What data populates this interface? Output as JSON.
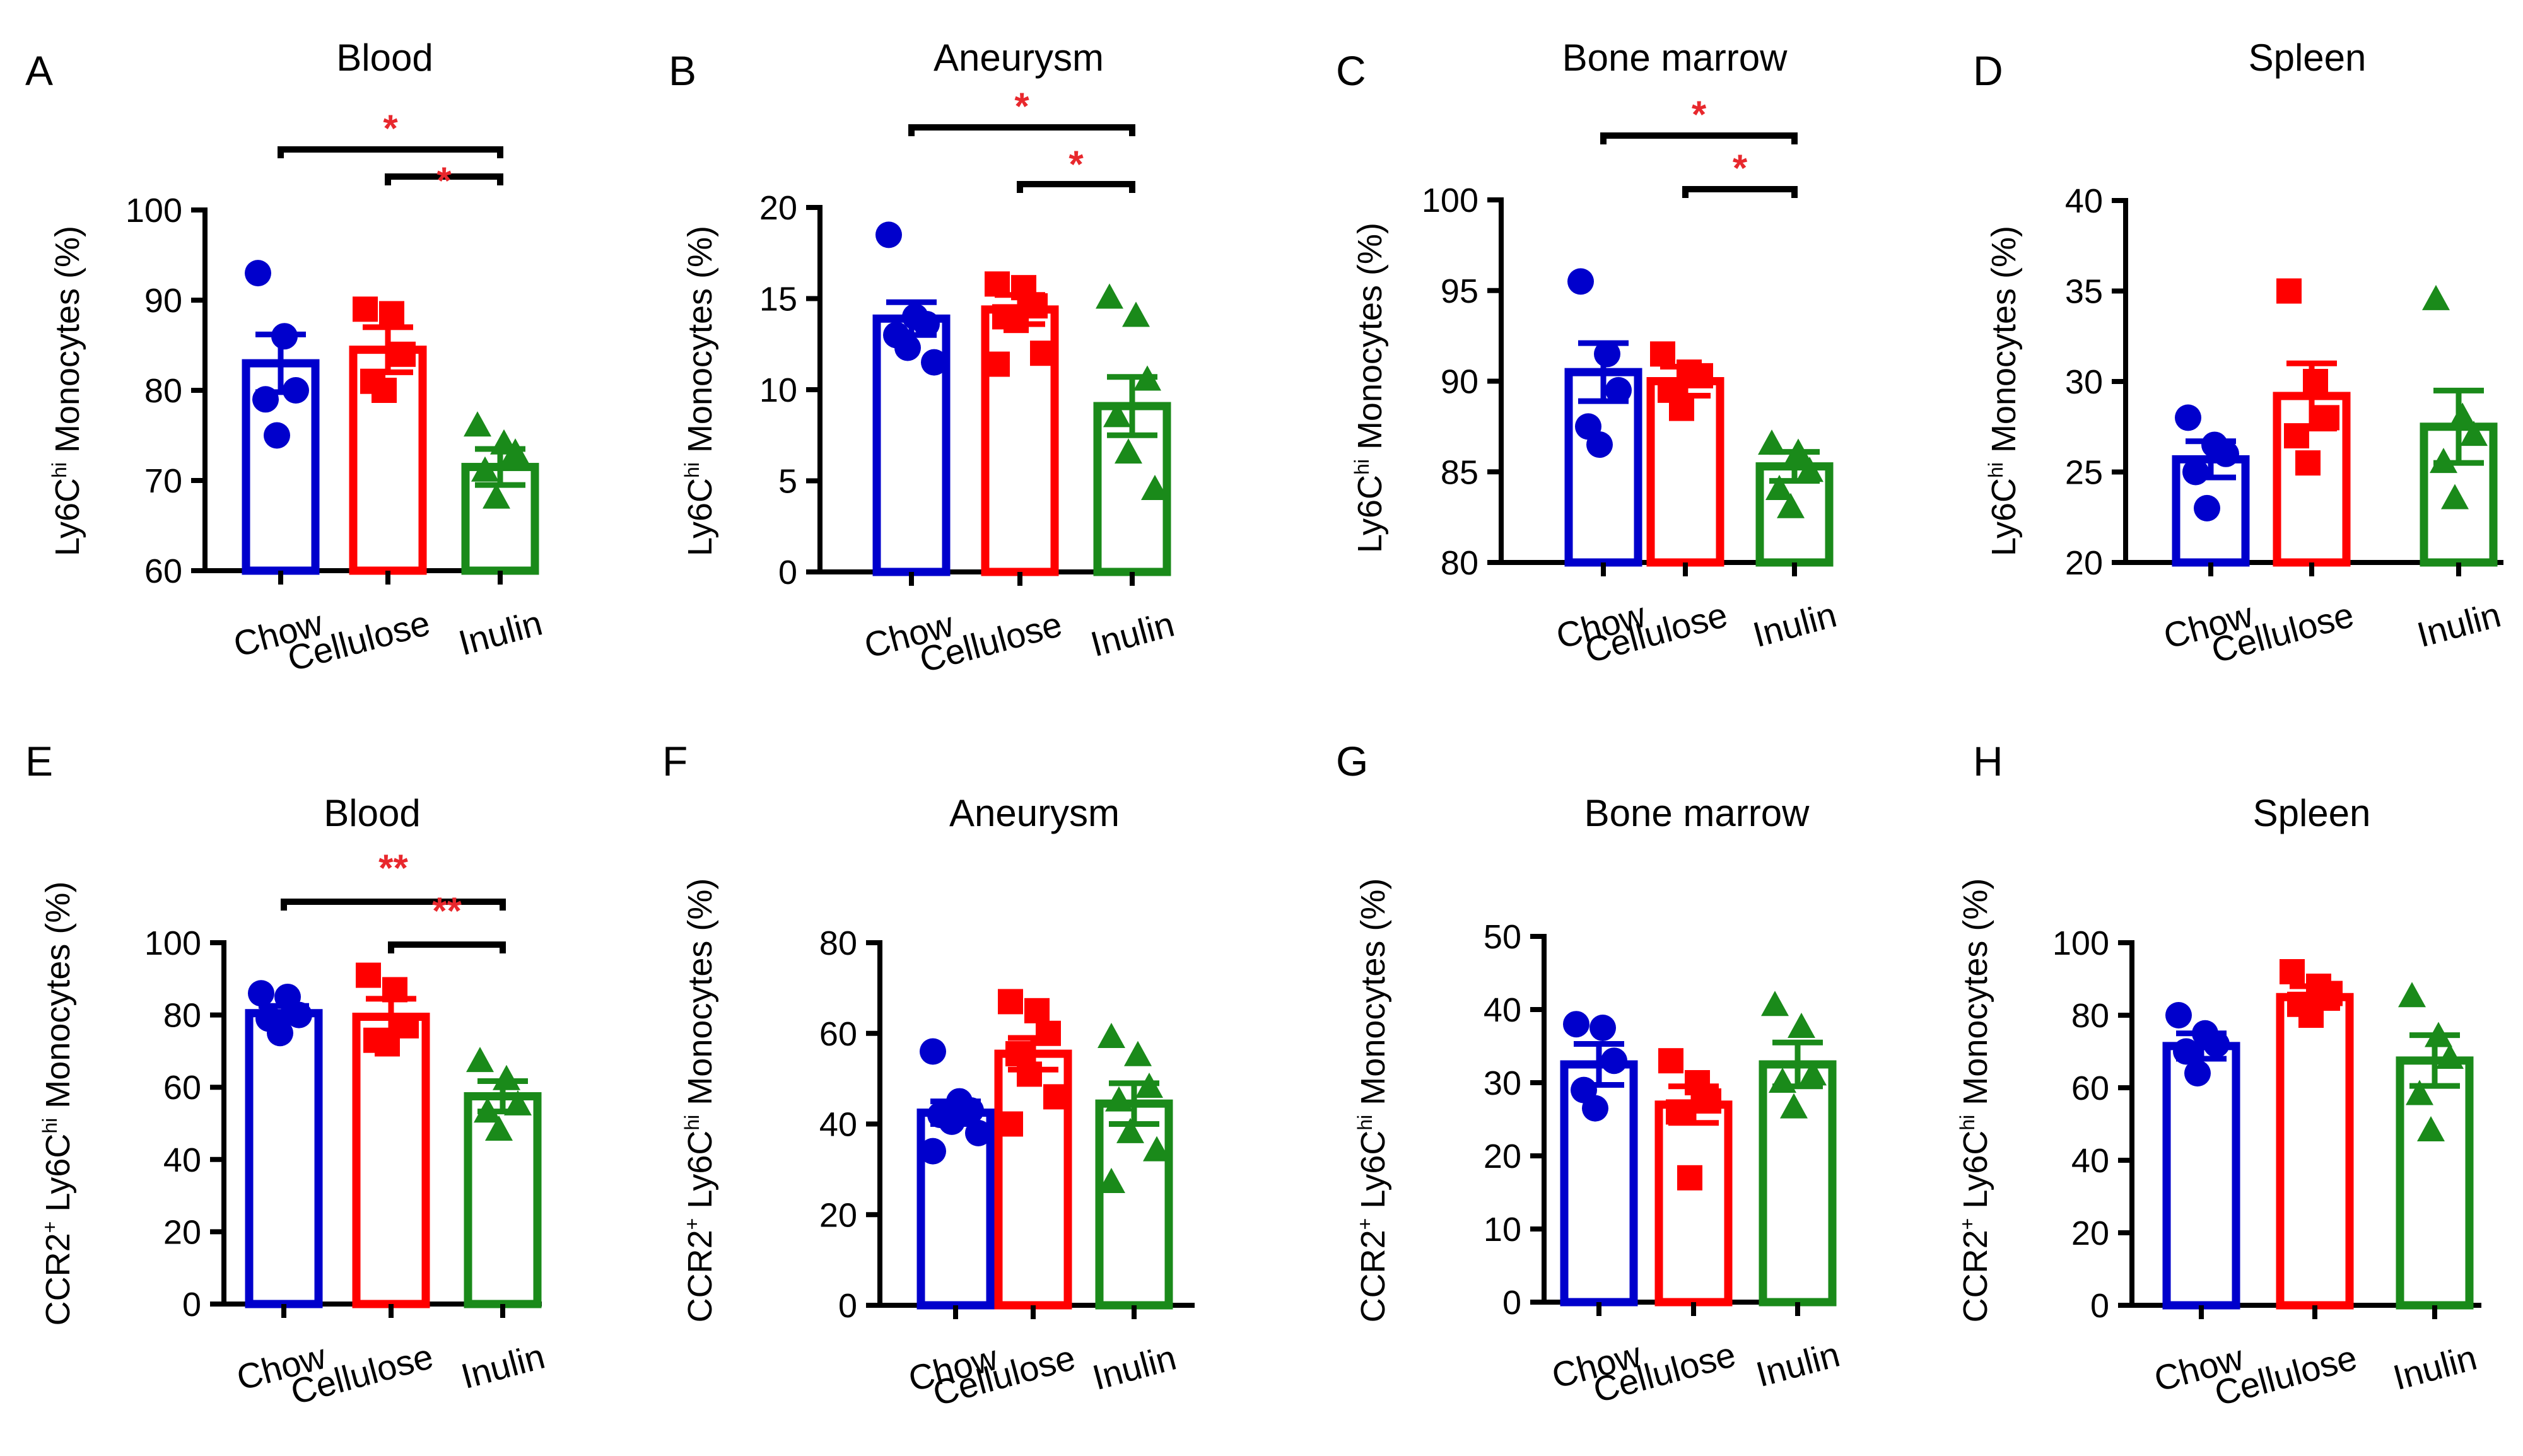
{
  "colors": {
    "Chow": "#0000cc",
    "Cellulose": "#ff0000",
    "Inulin": "#1a8a1a",
    "sig": "#e8282d"
  },
  "chart_data": [
    {
      "id": "A",
      "type": "bar",
      "panel_label": "A",
      "title": "Blood",
      "ylabel_parts": [
        "Ly6C",
        "hi",
        " Monocytes (%)"
      ],
      "categories": [
        "Chow",
        "Cellulose",
        "Inulin"
      ],
      "ylim": [
        60,
        100
      ],
      "yticks": [
        60,
        70,
        80,
        90,
        100
      ],
      "means": [
        83,
        84.5,
        71.5
      ],
      "sem": [
        3.2,
        2.5,
        2.0
      ],
      "points": [
        [
          93,
          86,
          80,
          79,
          75
        ],
        [
          89,
          88.5,
          84,
          81,
          80
        ],
        [
          76,
          74,
          73,
          71,
          68
        ]
      ],
      "comparisons": [
        {
          "from": 0,
          "to": 2,
          "label": "*"
        },
        {
          "from": 1,
          "to": 2,
          "label": "*"
        }
      ]
    },
    {
      "id": "B",
      "type": "bar",
      "panel_label": "B",
      "title": "Aneurysm",
      "ylabel_parts": [
        "Ly6C",
        "hi",
        " Monocytes (%)"
      ],
      "categories": [
        "Chow",
        "Cellulose",
        "Inulin"
      ],
      "ylim": [
        0,
        20
      ],
      "yticks": [
        0,
        5,
        10,
        15,
        20
      ],
      "means": [
        13.9,
        14.4,
        9.1
      ],
      "sem": [
        0.9,
        0.8,
        1.6
      ],
      "points": [
        [
          18.5,
          14,
          13.6,
          13,
          12.3,
          11.5
        ],
        [
          15.8,
          15.6,
          14.6,
          14,
          13.8,
          12,
          11.4
        ],
        [
          15,
          14,
          10.5,
          8.5,
          6.5,
          4.5
        ]
      ],
      "comparisons": [
        {
          "from": 0,
          "to": 2,
          "label": "*"
        },
        {
          "from": 1,
          "to": 2,
          "label": "*"
        }
      ]
    },
    {
      "id": "C",
      "type": "bar",
      "panel_label": "C",
      "title": "Bone marrow",
      "ylabel_parts": [
        "Ly6C",
        "hi",
        " Monocytes (%)"
      ],
      "categories": [
        "Chow",
        "Cellulose",
        "Inulin"
      ],
      "ylim": [
        80,
        100
      ],
      "yticks": [
        80,
        85,
        90,
        95,
        100
      ],
      "means": [
        90.5,
        90.0,
        85.3
      ],
      "sem": [
        1.6,
        0.8,
        0.8
      ],
      "points": [
        [
          95.5,
          91.5,
          89.5,
          87.5,
          86.5
        ],
        [
          91.5,
          90.5,
          90.3,
          89.5,
          88.5
        ],
        [
          86.5,
          86,
          85,
          84,
          83
        ]
      ],
      "comparisons": [
        {
          "from": 0,
          "to": 2,
          "label": "*"
        },
        {
          "from": 1,
          "to": 2,
          "label": "*"
        }
      ]
    },
    {
      "id": "D",
      "type": "bar",
      "panel_label": "D",
      "title": "Spleen",
      "ylabel_parts": [
        "Ly6C",
        "hi",
        " Monocytes (%)"
      ],
      "categories": [
        "Chow",
        "Cellulose",
        "Inulin"
      ],
      "ylim": [
        20,
        40
      ],
      "yticks": [
        20,
        25,
        30,
        35,
        40
      ],
      "means": [
        25.7,
        29.2,
        27.5
      ],
      "sem": [
        1.0,
        1.8,
        2.0
      ],
      "points": [
        [
          28,
          26.5,
          26,
          25,
          23
        ],
        [
          35,
          30,
          28,
          27,
          25.5
        ],
        [
          34.5,
          28,
          27,
          25.5,
          23.5
        ]
      ],
      "comparisons": []
    },
    {
      "id": "E",
      "type": "bar",
      "panel_label": "E",
      "title": "Blood",
      "ylabel_parts": [
        "CCR2",
        "+",
        " Ly6C",
        "hi",
        " Monocytes (%)"
      ],
      "categories": [
        "Chow",
        "Cellulose",
        "Inulin"
      ],
      "ylim": [
        0,
        100
      ],
      "yticks": [
        0,
        20,
        40,
        60,
        80,
        100
      ],
      "means": [
        80.5,
        79.5,
        57.5
      ],
      "sem": [
        2.0,
        5.0,
        4.2
      ],
      "points": [
        [
          86,
          85,
          80,
          79,
          75
        ],
        [
          91,
          87,
          77,
          73,
          72
        ],
        [
          67,
          62,
          55,
          53,
          48
        ]
      ],
      "comparisons": [
        {
          "from": 0,
          "to": 2,
          "label": "**"
        },
        {
          "from": 1,
          "to": 2,
          "label": "**"
        }
      ]
    },
    {
      "id": "F",
      "type": "bar",
      "panel_label": "F",
      "title": "Aneurysm",
      "ylabel_parts": [
        "CCR2",
        "+",
        " Ly6C",
        "hi",
        " Monocytes (%)"
      ],
      "categories": [
        "Chow",
        "Cellulose",
        "Inulin"
      ],
      "ylim": [
        0,
        80
      ],
      "yticks": [
        0,
        20,
        40,
        60,
        80
      ],
      "means": [
        42.5,
        55.5,
        44.5
      ],
      "sem": [
        2.5,
        3.5,
        4.5
      ],
      "points": [
        [
          56,
          45,
          43,
          42,
          40.5,
          38,
          34
        ],
        [
          67,
          65,
          60,
          55.5,
          51,
          46,
          40
        ],
        [
          59,
          55,
          48,
          45,
          38,
          34,
          27
        ]
      ],
      "comparisons": []
    },
    {
      "id": "G",
      "type": "bar",
      "panel_label": "G",
      "title": "Bone marrow",
      "ylabel_parts": [
        "CCR2",
        "+",
        " Ly6C",
        "hi",
        " Monocytes (%)"
      ],
      "categories": [
        "Chow",
        "Cellulose",
        "Inulin"
      ],
      "ylim": [
        0,
        50
      ],
      "yticks": [
        0,
        10,
        20,
        30,
        40,
        50
      ],
      "means": [
        32.5,
        27,
        32.5
      ],
      "sem": [
        2.8,
        2.5,
        3.0
      ],
      "points": [
        [
          38,
          37.5,
          33,
          29,
          26.5
        ],
        [
          33,
          30,
          27.5,
          26,
          17
        ],
        [
          40.5,
          37.5,
          31,
          30,
          26.5
        ]
      ],
      "comparisons": []
    },
    {
      "id": "H",
      "type": "bar",
      "panel_label": "H",
      "title": "Spleen",
      "ylabel_parts": [
        "CCR2",
        "+",
        " Ly6C",
        "hi",
        " Monocytes (%)"
      ],
      "categories": [
        "Chow",
        "Cellulose",
        "Inulin"
      ],
      "ylim": [
        0,
        100
      ],
      "yticks": [
        0,
        20,
        40,
        60,
        80,
        100
      ],
      "means": [
        71.5,
        85,
        67.5
      ],
      "sem": [
        3.5,
        3.0,
        7.0
      ],
      "points": [
        [
          80,
          75,
          72,
          70,
          64
        ],
        [
          92,
          88,
          86,
          83,
          80
        ],
        [
          85,
          74,
          68,
          58,
          48
        ]
      ],
      "comparisons": []
    }
  ]
}
